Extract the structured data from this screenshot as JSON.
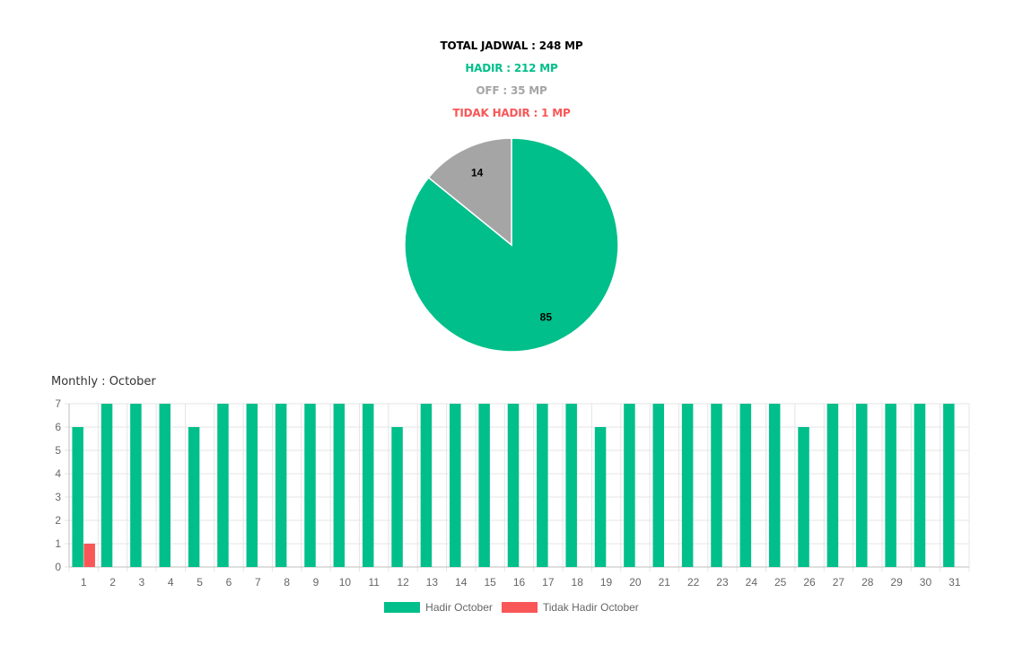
{
  "header": {
    "total_label": "TOTAL JADWAL : 248 MP",
    "hadir_label": "HADIR : 212 MP",
    "off_label": "OFF : 35 MP",
    "tidak_hadir_label": "TIDAK HADIR : 1 MP"
  },
  "colors": {
    "hadir": "#00bf8a",
    "off": "#a5a5a5",
    "tidak_hadir": "#f95757",
    "total": "#000000",
    "grid": "#e5e5e5",
    "tick": "#666666"
  },
  "monthly": {
    "title": "Monthly : October"
  },
  "chart_data": [
    {
      "type": "pie",
      "categories": [
        "Hadir",
        "Off",
        "Tidak Hadir"
      ],
      "values": [
        85,
        14,
        0
      ],
      "data_labels": [
        "85",
        "14",
        ""
      ],
      "start_angle_deg": 0,
      "direction": "clockwise"
    },
    {
      "type": "bar",
      "title": "Monthly : October",
      "categories": [
        "1",
        "2",
        "3",
        "4",
        "5",
        "6",
        "7",
        "8",
        "9",
        "10",
        "11",
        "12",
        "13",
        "14",
        "15",
        "16",
        "17",
        "18",
        "19",
        "20",
        "21",
        "22",
        "23",
        "24",
        "25",
        "26",
        "27",
        "28",
        "29",
        "30",
        "31"
      ],
      "series": [
        {
          "name": "Hadir October",
          "values": [
            6,
            7,
            7,
            7,
            6,
            7,
            7,
            7,
            7,
            7,
            7,
            6,
            7,
            7,
            7,
            7,
            7,
            7,
            6,
            7,
            7,
            7,
            7,
            7,
            7,
            6,
            7,
            7,
            7,
            7,
            7
          ]
        },
        {
          "name": "Tidak Hadir October",
          "values": [
            1,
            0,
            0,
            0,
            0,
            0,
            0,
            0,
            0,
            0,
            0,
            0,
            0,
            0,
            0,
            0,
            0,
            0,
            0,
            0,
            0,
            0,
            0,
            0,
            0,
            0,
            0,
            0,
            0,
            0,
            0
          ]
        }
      ],
      "ylim": [
        0,
        7
      ],
      "yticks": [
        0,
        1,
        2,
        3,
        4,
        5,
        6,
        7
      ],
      "grid": true,
      "legend_placement": "bottom-center"
    }
  ]
}
